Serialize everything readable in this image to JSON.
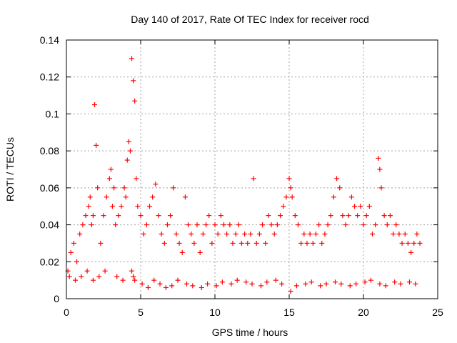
{
  "chart_data": {
    "type": "scatter",
    "title": "Day 140 of 2017, Rate Of TEC Index for receiver rocd",
    "xlabel": "GPS time / hours",
    "ylabel": "ROTI / TECUs",
    "xlim": [
      0,
      25
    ],
    "ylim": [
      0,
      0.14
    ],
    "xticks": [
      0,
      5,
      10,
      15,
      20,
      25
    ],
    "yticks": [
      0,
      0.02,
      0.04,
      0.06,
      0.08,
      0.1,
      0.12,
      0.14
    ],
    "grid": true,
    "marker": "+",
    "color": "#ff0000",
    "series": [
      {
        "x": [
          0.1,
          0.3,
          0.5,
          0.7,
          0.9,
          1.1,
          1.3,
          1.5,
          1.6,
          1.7,
          1.8,
          1.9,
          2.0,
          2.1,
          2.3,
          2.5,
          2.7,
          2.9,
          3.0,
          3.1,
          3.2,
          3.3,
          3.5,
          3.7,
          3.9,
          4.0,
          4.1,
          4.2,
          4.3,
          4.4,
          4.5,
          4.6,
          4.7,
          4.8,
          5.0,
          5.2,
          5.4,
          5.6,
          5.8,
          6.0,
          6.2,
          6.4,
          6.6,
          6.8,
          7.0,
          7.2,
          7.4,
          7.6,
          7.8,
          8.0,
          8.2,
          8.4,
          8.6,
          8.8,
          9.0,
          9.2,
          9.4,
          9.6,
          9.8,
          10.0,
          10.2,
          10.4,
          10.6,
          10.8,
          11.0,
          11.2,
          11.4,
          11.6,
          11.8,
          12.0,
          12.2,
          12.4,
          12.6,
          12.8,
          13.0,
          13.2,
          13.4,
          13.6,
          13.8,
          14.0,
          14.2,
          14.4,
          14.6,
          14.8,
          15.0,
          15.1,
          15.2,
          15.4,
          15.6,
          15.8,
          16.0,
          16.2,
          16.4,
          16.6,
          16.8,
          17.0,
          17.2,
          17.4,
          17.6,
          17.8,
          18.0,
          18.2,
          18.4,
          18.6,
          18.8,
          19.0,
          19.2,
          19.4,
          19.6,
          19.8,
          20.0,
          20.2,
          20.4,
          20.6,
          20.8,
          21.0,
          21.1,
          21.2,
          21.4,
          21.6,
          21.8,
          22.0,
          22.2,
          22.4,
          22.6,
          22.8,
          23.0,
          23.2,
          23.4,
          23.6,
          23.8,
          0.2,
          0.6,
          1.0,
          1.4,
          1.8,
          2.2,
          2.6,
          3.4,
          3.8,
          4.4,
          4.5,
          4.6,
          5.1,
          5.5,
          5.9,
          6.3,
          6.7,
          7.1,
          7.5,
          8.1,
          8.5,
          9.1,
          9.5,
          10.1,
          10.5,
          11.1,
          11.5,
          12.1,
          12.5,
          13.1,
          13.5,
          14.1,
          14.5,
          15.1,
          15.5,
          16.1,
          16.5,
          17.1,
          17.5,
          18.1,
          18.5,
          19.1,
          19.5,
          20.1,
          20.5,
          21.1,
          21.5,
          22.1,
          22.5,
          23.1,
          23.5
        ],
        "y": [
          0.015,
          0.025,
          0.03,
          0.02,
          0.035,
          0.04,
          0.045,
          0.05,
          0.055,
          0.04,
          0.045,
          0.105,
          0.083,
          0.06,
          0.03,
          0.045,
          0.055,
          0.065,
          0.07,
          0.05,
          0.06,
          0.04,
          0.045,
          0.05,
          0.06,
          0.055,
          0.075,
          0.085,
          0.08,
          0.13,
          0.118,
          0.107,
          0.065,
          0.05,
          0.045,
          0.035,
          0.04,
          0.05,
          0.055,
          0.062,
          0.045,
          0.035,
          0.03,
          0.04,
          0.045,
          0.06,
          0.035,
          0.03,
          0.025,
          0.055,
          0.04,
          0.035,
          0.03,
          0.04,
          0.025,
          0.035,
          0.04,
          0.045,
          0.03,
          0.04,
          0.035,
          0.045,
          0.04,
          0.035,
          0.04,
          0.03,
          0.035,
          0.04,
          0.03,
          0.035,
          0.03,
          0.035,
          0.065,
          0.03,
          0.035,
          0.04,
          0.03,
          0.045,
          0.04,
          0.035,
          0.04,
          0.045,
          0.05,
          0.055,
          0.065,
          0.06,
          0.055,
          0.045,
          0.04,
          0.03,
          0.035,
          0.03,
          0.035,
          0.03,
          0.035,
          0.04,
          0.03,
          0.035,
          0.04,
          0.045,
          0.055,
          0.065,
          0.06,
          0.045,
          0.04,
          0.045,
          0.055,
          0.05,
          0.045,
          0.05,
          0.04,
          0.045,
          0.05,
          0.035,
          0.04,
          0.076,
          0.07,
          0.06,
          0.045,
          0.04,
          0.045,
          0.035,
          0.04,
          0.035,
          0.03,
          0.035,
          0.03,
          0.025,
          0.03,
          0.035,
          0.03,
          0.012,
          0.01,
          0.012,
          0.015,
          0.01,
          0.012,
          0.015,
          0.012,
          0.01,
          0.015,
          0.012,
          0.01,
          0.008,
          0.006,
          0.01,
          0.008,
          0.006,
          0.007,
          0.01,
          0.008,
          0.007,
          0.006,
          0.008,
          0.007,
          0.009,
          0.008,
          0.01,
          0.009,
          0.008,
          0.007,
          0.009,
          0.01,
          0.008,
          0.004,
          0.007,
          0.008,
          0.009,
          0.007,
          0.008,
          0.009,
          0.008,
          0.007,
          0.008,
          0.009,
          0.01,
          0.008,
          0.007,
          0.009,
          0.008,
          0.009,
          0.008
        ]
      }
    ]
  }
}
